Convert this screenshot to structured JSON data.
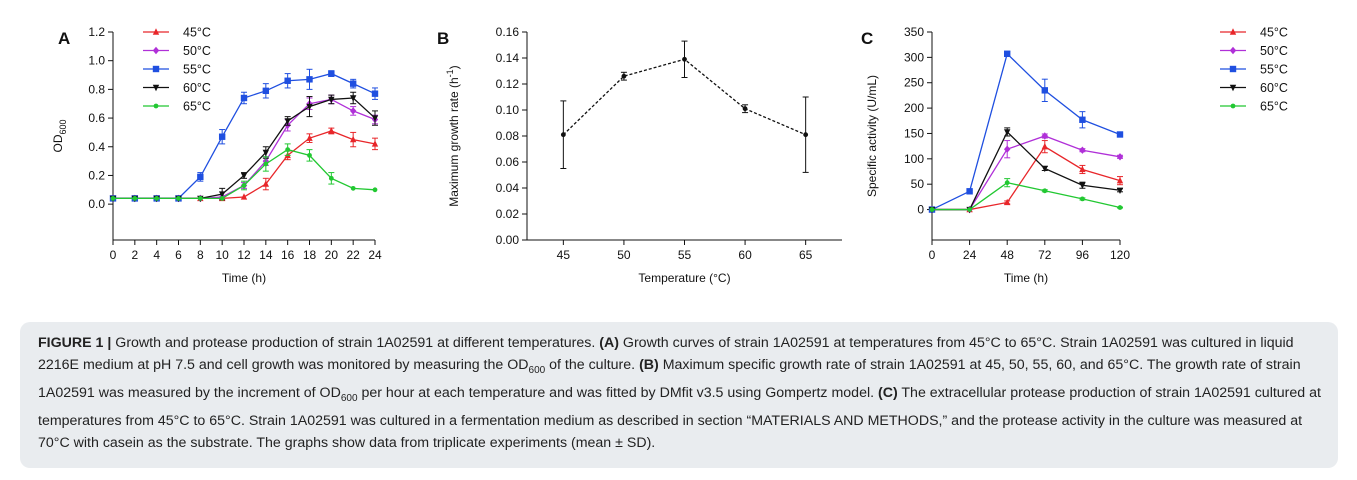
{
  "chart_data": [
    {
      "panel": "A",
      "type": "line",
      "xlabel": "Time (h)",
      "ylabel_main": "OD",
      "ylabel_sub": "600",
      "xlim": [
        0,
        24
      ],
      "ylim": [
        -0.25,
        1.2
      ],
      "x_ticks": [
        0,
        2,
        4,
        6,
        8,
        10,
        12,
        14,
        16,
        18,
        20,
        22,
        24
      ],
      "y_ticks": [
        0.0,
        0.2,
        0.4,
        0.6,
        0.8,
        1.0,
        1.2
      ],
      "y_tick_labels": [
        "0.0",
        "0.2",
        "0.4",
        "0.6",
        "0.8",
        "1.0",
        "1.2"
      ],
      "legend_position": "top-left",
      "x": [
        0,
        2,
        4,
        6,
        8,
        10,
        12,
        14,
        16,
        18,
        20,
        22,
        24
      ],
      "series": [
        {
          "name": "45°C",
          "color": "#e8262a",
          "marker": "triangle",
          "values": [
            0.04,
            0.04,
            0.04,
            0.04,
            0.04,
            0.04,
            0.05,
            0.14,
            0.34,
            0.46,
            0.51,
            0.45,
            0.42
          ],
          "err": [
            0,
            0,
            0,
            0,
            0,
            0,
            0,
            0.04,
            0.03,
            0.03,
            0.02,
            0.05,
            0.04
          ]
        },
        {
          "name": "50°C",
          "color": "#b030d8",
          "marker": "diamond",
          "values": [
            0.04,
            0.04,
            0.04,
            0.04,
            0.04,
            0.05,
            0.13,
            0.3,
            0.55,
            0.7,
            0.73,
            0.65,
            0.59
          ],
          "err": [
            0,
            0,
            0,
            0,
            0,
            0,
            0.02,
            0.03,
            0.04,
            0.04,
            0.03,
            0.03,
            0.03
          ]
        },
        {
          "name": "55°C",
          "color": "#1f4fe0",
          "marker": "square",
          "values": [
            0.04,
            0.04,
            0.04,
            0.04,
            0.19,
            0.47,
            0.74,
            0.79,
            0.86,
            0.87,
            0.91,
            0.84,
            0.77
          ],
          "err": [
            0,
            0,
            0,
            0,
            0.03,
            0.05,
            0.04,
            0.05,
            0.05,
            0.07,
            0.02,
            0.03,
            0.04
          ]
        },
        {
          "name": "60°C",
          "color": "#111111",
          "marker": "triangle-down",
          "values": [
            0.04,
            0.04,
            0.04,
            0.04,
            0.04,
            0.07,
            0.2,
            0.36,
            0.58,
            0.68,
            0.73,
            0.74,
            0.6
          ],
          "err": [
            0,
            0,
            0,
            0,
            0,
            0.04,
            0.02,
            0.04,
            0.03,
            0.07,
            0.03,
            0.04,
            0.05
          ]
        },
        {
          "name": "65°C",
          "color": "#22c832",
          "marker": "dot",
          "values": [
            0.04,
            0.04,
            0.04,
            0.04,
            0.04,
            0.04,
            0.13,
            0.28,
            0.38,
            0.34,
            0.18,
            0.11,
            0.1
          ],
          "err": [
            0,
            0,
            0,
            0,
            0,
            0,
            0.03,
            0.05,
            0.04,
            0.04,
            0.04,
            0,
            0
          ]
        }
      ]
    },
    {
      "panel": "B",
      "type": "line",
      "xlabel": "Temperature (°C)",
      "ylabel_main": "Maximum growth rate (h",
      "ylabel_sup": "-1",
      "ylabel_end": ")",
      "xlim": [
        42,
        68
      ],
      "ylim": [
        0,
        0.16
      ],
      "x_ticks": [
        45,
        50,
        55,
        60,
        65
      ],
      "y_ticks": [
        0,
        0.02,
        0.04,
        0.06,
        0.08,
        0.1,
        0.12,
        0.14,
        0.16
      ],
      "y_tick_labels": [
        "0.00",
        "0.02",
        "0.04",
        "0.06",
        "0.08",
        "0.10",
        "0.12",
        "0.14",
        "0.16"
      ],
      "line_style": "dashed",
      "x": [
        45,
        50,
        55,
        60,
        65
      ],
      "series": [
        {
          "color": "#111111",
          "values": [
            0.081,
            0.126,
            0.139,
            0.101,
            0.081
          ],
          "err": [
            0.026,
            0.003,
            0.014,
            0.003,
            0.029
          ]
        }
      ]
    },
    {
      "panel": "C",
      "type": "line",
      "xlabel": "Time (h)",
      "ylabel_main": "Specific activity (U/mL)",
      "xlim": [
        0,
        120
      ],
      "ylim": [
        -60,
        350
      ],
      "x_ticks": [
        0,
        24,
        48,
        72,
        96,
        120
      ],
      "y_ticks": [
        0,
        50,
        100,
        150,
        200,
        250,
        300,
        350
      ],
      "y_tick_labels": [
        "0",
        "50",
        "100",
        "150",
        "200",
        "250",
        "300",
        "350"
      ],
      "legend_position": "top-right",
      "x": [
        0,
        24,
        48,
        72,
        96,
        120
      ],
      "series": [
        {
          "name": "45°C",
          "color": "#e8262a",
          "marker": "triangle",
          "values": [
            0,
            0,
            14,
            124,
            79,
            57
          ],
          "err": [
            0,
            0,
            3,
            12,
            8,
            8
          ]
        },
        {
          "name": "50°C",
          "color": "#b030d8",
          "marker": "diamond",
          "values": [
            0,
            0,
            119,
            145,
            117,
            104
          ],
          "err": [
            0,
            0,
            17,
            4,
            3,
            3
          ]
        },
        {
          "name": "55°C",
          "color": "#1f4fe0",
          "marker": "square",
          "values": [
            0,
            36,
            307,
            235,
            177,
            148
          ],
          "err": [
            0,
            2,
            5,
            22,
            16,
            3
          ]
        },
        {
          "name": "60°C",
          "color": "#111111",
          "marker": "triangle-down",
          "values": [
            0,
            0,
            153,
            81,
            48,
            38
          ],
          "err": [
            0,
            0,
            8,
            4,
            6,
            3
          ]
        },
        {
          "name": "65°C",
          "color": "#22c832",
          "marker": "dot",
          "values": [
            0,
            0,
            53,
            37,
            21,
            4
          ],
          "err": [
            0,
            0,
            8,
            2,
            2,
            1
          ]
        }
      ]
    }
  ],
  "panel_letters": [
    "A",
    "B",
    "C"
  ],
  "caption": {
    "figure_label": "FIGURE 1 |",
    "intro": " Growth and protease production of strain 1A02591 at different temperatures. ",
    "a_label": "(A)",
    "a_text_1": " Growth curves of strain 1A02591 at temperatures from 45°C to 65°C. Strain 1A02591 was cultured in liquid 2216E medium at pH 7.5 and cell growth was monitored by measuring the OD",
    "a_sub": "600",
    "a_text_2": " of the culture. ",
    "b_label": "(B)",
    "b_text_1": " Maximum specific growth rate of strain 1A02591 at 45, 50, 55, 60, and 65°C. The growth rate of strain 1A02591 was measured by the increment of OD",
    "b_sub": "600",
    "b_text_2": " per hour at each temperature and was fitted by DMfit v3.5 using Gompertz model. ",
    "c_label": "(C)",
    "c_text": " The extracellular protease production of strain 1A02591 cultured at temperatures from 45°C to 65°C. Strain 1A02591 was cultured in a fermentation medium as described in section “MATERIALS AND METHODS,” and the protease activity in the culture was measured at 70°C with casein as the substrate. The graphs show data from triplicate experiments (mean ± SD)."
  }
}
